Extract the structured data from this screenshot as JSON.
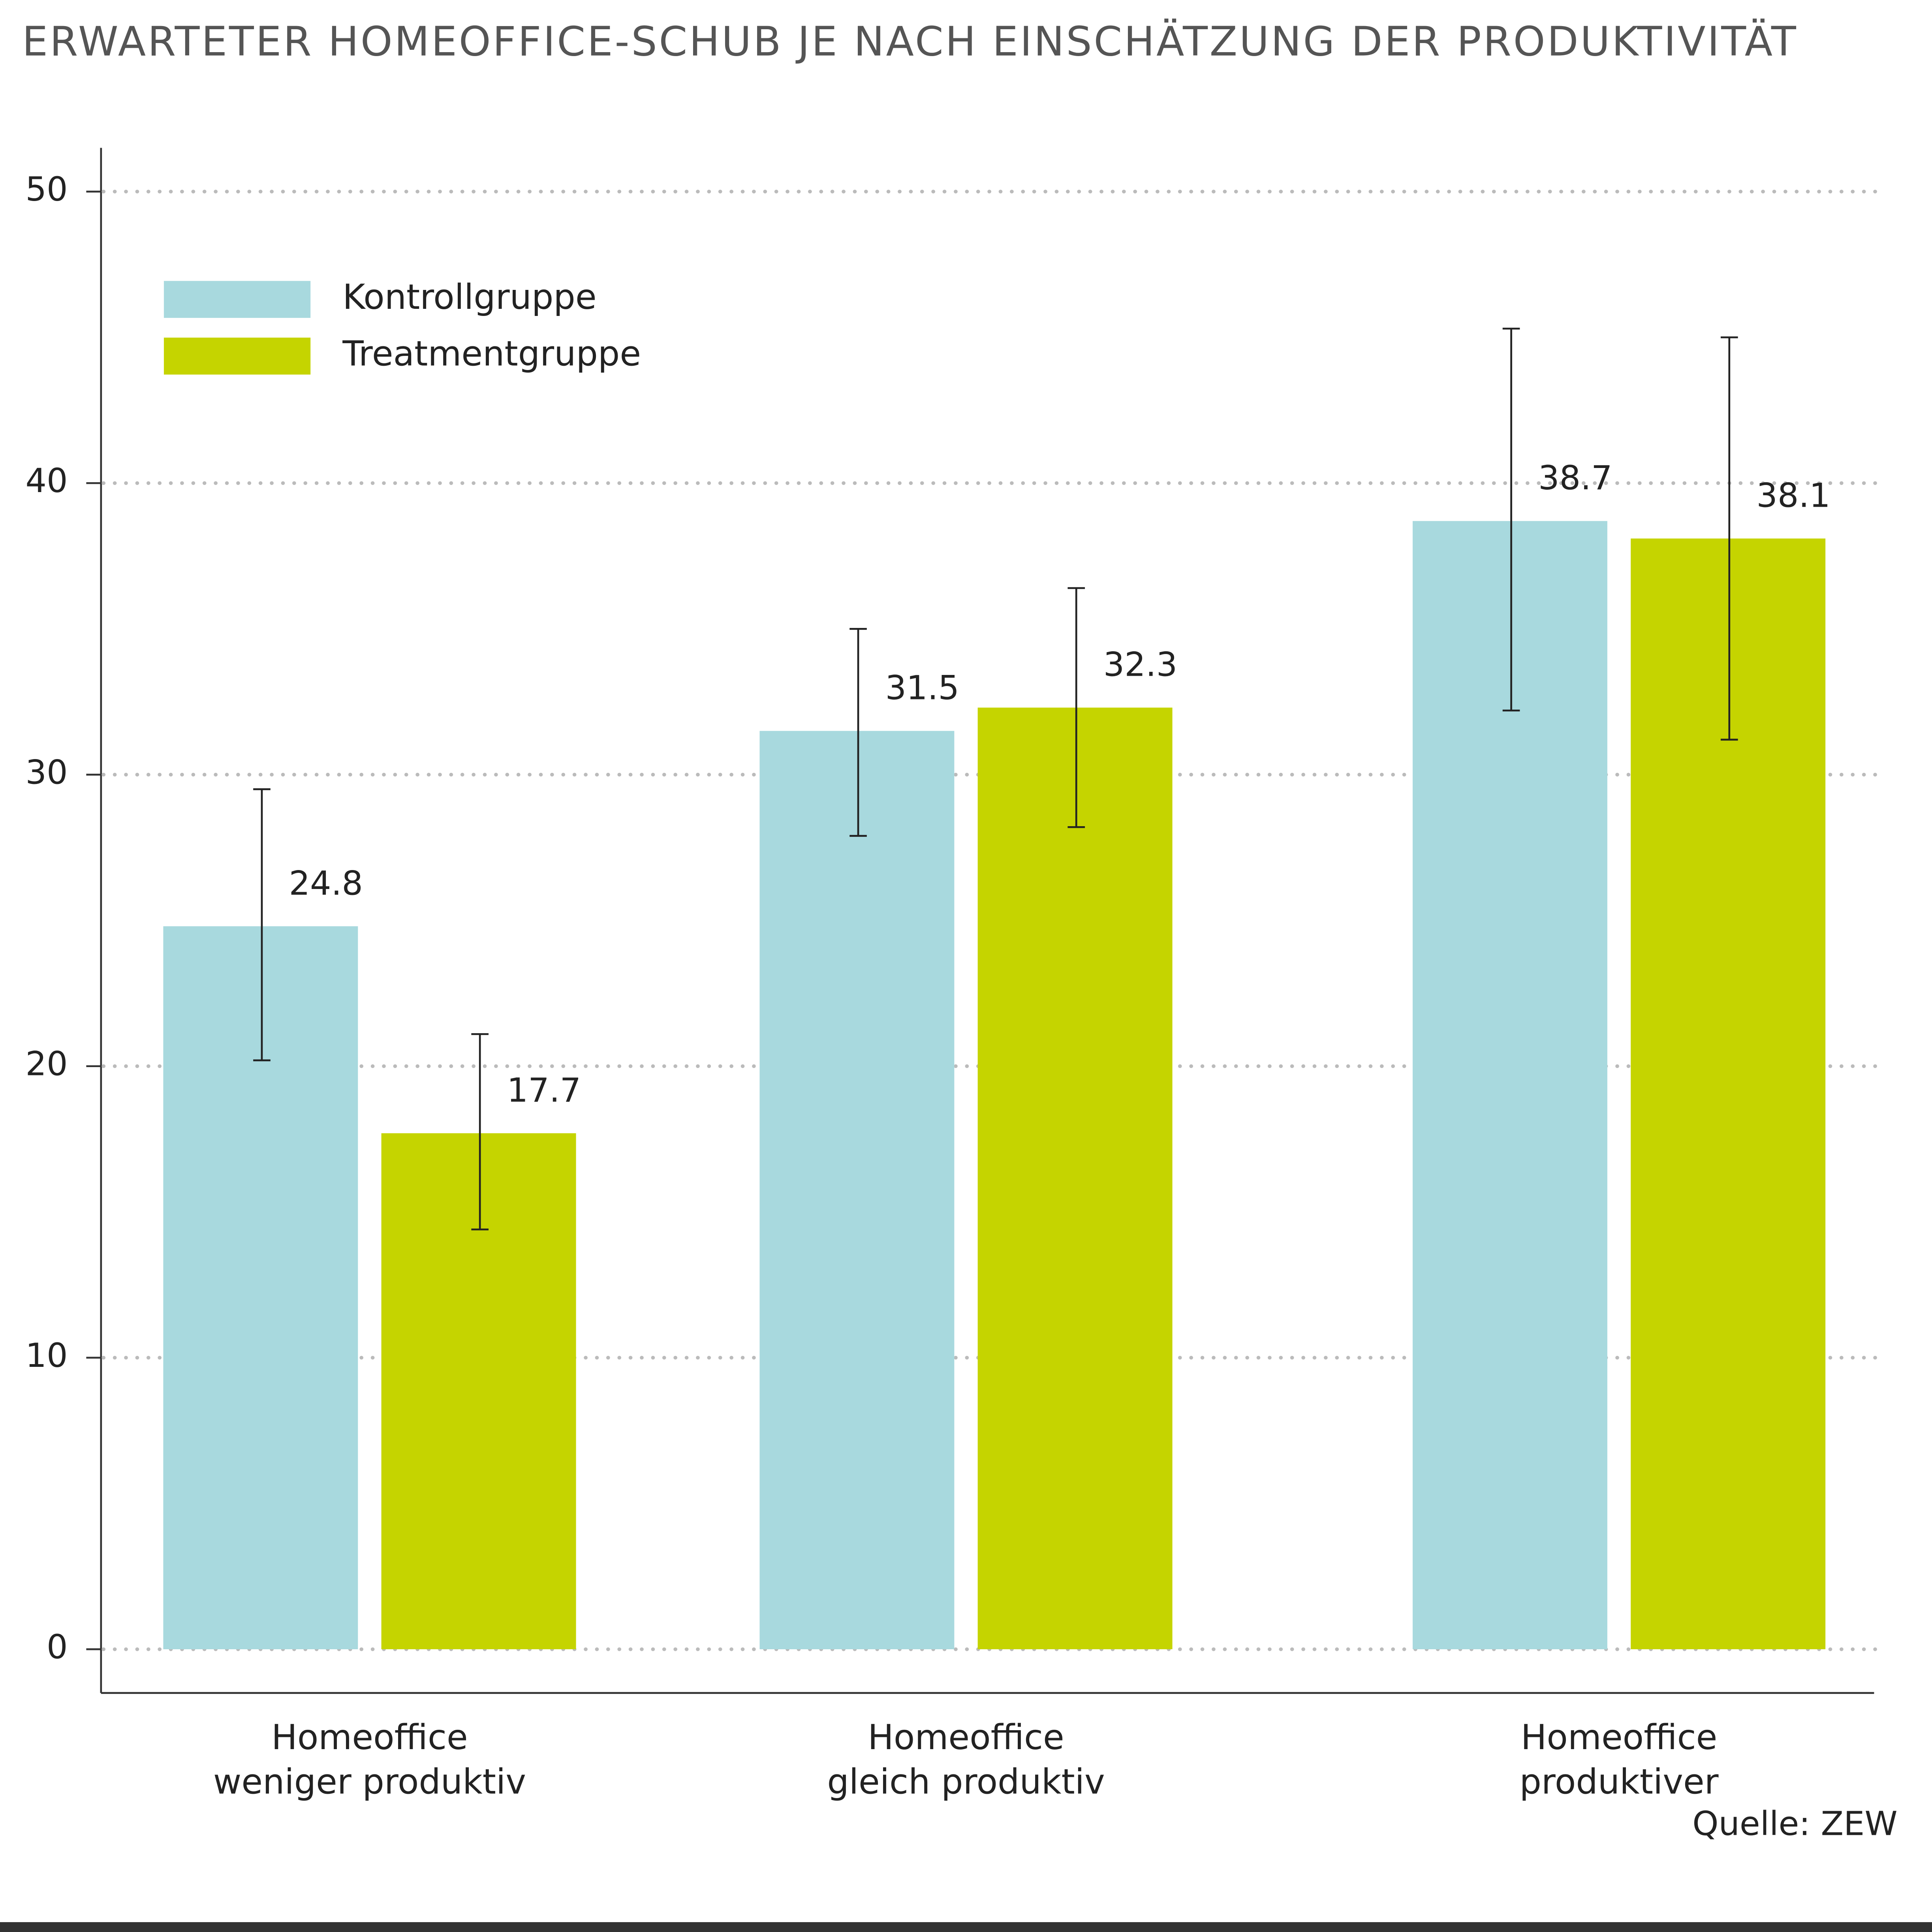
{
  "chart_data": {
    "type": "bar",
    "title": "ERWARTETER HOMEOFFICE-SCHUB JE NACH EINSCHÄTZUNG DER PRODUKTIVITÄT",
    "categories": [
      [
        "Homeoffice",
        "weniger produktiv"
      ],
      [
        "Homeoffice",
        "gleich produktiv"
      ],
      [
        "Homeoffice",
        "produktiver"
      ]
    ],
    "series": [
      {
        "name": "Kontrollgruppe",
        "color": "#a8d9de",
        "values": [
          24.8,
          31.5,
          38.7
        ],
        "lower": [
          20.2,
          27.9,
          32.2
        ],
        "upper": [
          29.5,
          35.0,
          45.3
        ]
      },
      {
        "name": "Treatmentgruppe",
        "color": "#c5d400",
        "values": [
          17.7,
          32.3,
          38.1
        ],
        "lower": [
          14.4,
          28.2,
          31.2
        ],
        "upper": [
          21.1,
          36.4,
          45.0
        ]
      }
    ],
    "ylim": [
      -1.5,
      51.5
    ],
    "yticks": [
      0,
      10,
      20,
      30,
      40,
      50
    ],
    "grid": true,
    "source": "Quelle: ZEW"
  }
}
